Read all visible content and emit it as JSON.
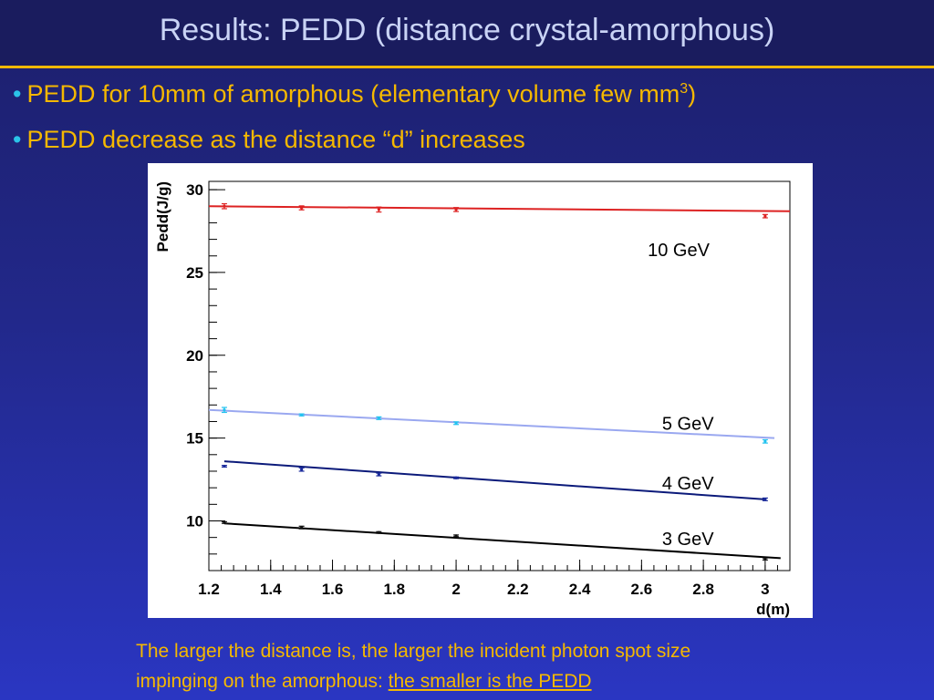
{
  "slide": {
    "title": "Results: PEDD (distance crystal-amorphous)",
    "bullets": [
      {
        "text": "PEDD for  10mm of amorphous (elementary volume few mm",
        "sup": "3",
        "tail": ")"
      },
      {
        "text": "PEDD decrease as the distance “d” increases",
        "sup": "",
        "tail": ""
      }
    ],
    "footer": {
      "line1": "The larger the distance is,  the larger the incident photon spot size",
      "line2_prefix": "impinging on the amorphous: ",
      "line2_underlined": "the smaller is the PEDD"
    },
    "colors": {
      "accent": "#f5b800",
      "bullet_dot": "#2bc3e8",
      "title": "#c9d3f5"
    }
  },
  "chart_data": {
    "type": "scatter",
    "title": "",
    "xlabel": "d(m)",
    "ylabel": "Pedd(J/g)",
    "xlim": [
      1.2,
      3.08
    ],
    "ylim": [
      7.0,
      30.5
    ],
    "xticks": [
      1.2,
      1.4,
      1.6,
      1.8,
      2,
      2.2,
      2.4,
      2.6,
      2.8,
      3
    ],
    "xtick_labels": [
      "1.2",
      "1.4",
      "1.6",
      "1.8",
      "2",
      "2.2",
      "2.4",
      "2.6",
      "2.8",
      "3"
    ],
    "yticks": [
      10,
      15,
      20,
      25,
      30
    ],
    "ytick_labels": [
      "10",
      "15",
      "20",
      "25",
      "30"
    ],
    "grid": false,
    "series": [
      {
        "name": "10 GeV",
        "color": "#dd2222",
        "x": [
          1.25,
          1.5,
          1.75,
          2.0,
          3.0
        ],
        "y": [
          29.0,
          28.9,
          28.8,
          28.8,
          28.4
        ],
        "err": [
          0.15,
          0.12,
          0.15,
          0.12,
          0.1
        ],
        "fit": {
          "x": [
            1.2,
            3.08
          ],
          "y": [
            29.0,
            28.7
          ],
          "color": "#dd2222"
        }
      },
      {
        "name": "5 GeV",
        "color": "#22c3f0",
        "x": [
          1.25,
          1.5,
          1.75,
          2.0,
          3.0
        ],
        "y": [
          16.7,
          16.4,
          16.2,
          15.9,
          14.8
        ],
        "err": [
          0.15,
          0.06,
          0.08,
          0.08,
          0.1
        ],
        "fit": {
          "x": [
            1.2,
            3.03
          ],
          "y": [
            16.7,
            15.0
          ],
          "color": "#9aa8f0"
        }
      },
      {
        "name": "4 GeV",
        "color": "#1a2a9c",
        "x": [
          1.25,
          1.5,
          1.75,
          2.0,
          3.0
        ],
        "y": [
          13.3,
          13.1,
          12.8,
          12.6,
          11.3
        ],
        "err": [
          0.05,
          0.1,
          0.08,
          0.05,
          0.08
        ],
        "fit": {
          "x": [
            1.25,
            3.0
          ],
          "y": [
            13.6,
            11.3
          ],
          "color": "#0b1a7a"
        }
      },
      {
        "name": "3 GeV",
        "color": "#111111",
        "x": [
          1.25,
          1.5,
          1.75,
          2.0,
          3.0
        ],
        "y": [
          9.9,
          9.6,
          9.3,
          9.1,
          7.7
        ],
        "err": [
          0.05,
          0.08,
          0.05,
          0.05,
          0.06
        ],
        "fit": {
          "x": [
            1.25,
            3.05
          ],
          "y": [
            9.85,
            7.75
          ],
          "color": "#000000"
        }
      }
    ],
    "annotations": [
      {
        "text": "10 GeV",
        "series": "10 GeV"
      },
      {
        "text": "5 GeV",
        "series": "5 GeV"
      },
      {
        "text": "4 GeV",
        "series": "4 GeV"
      },
      {
        "text": "3 GeV",
        "series": "3 GeV"
      }
    ]
  }
}
